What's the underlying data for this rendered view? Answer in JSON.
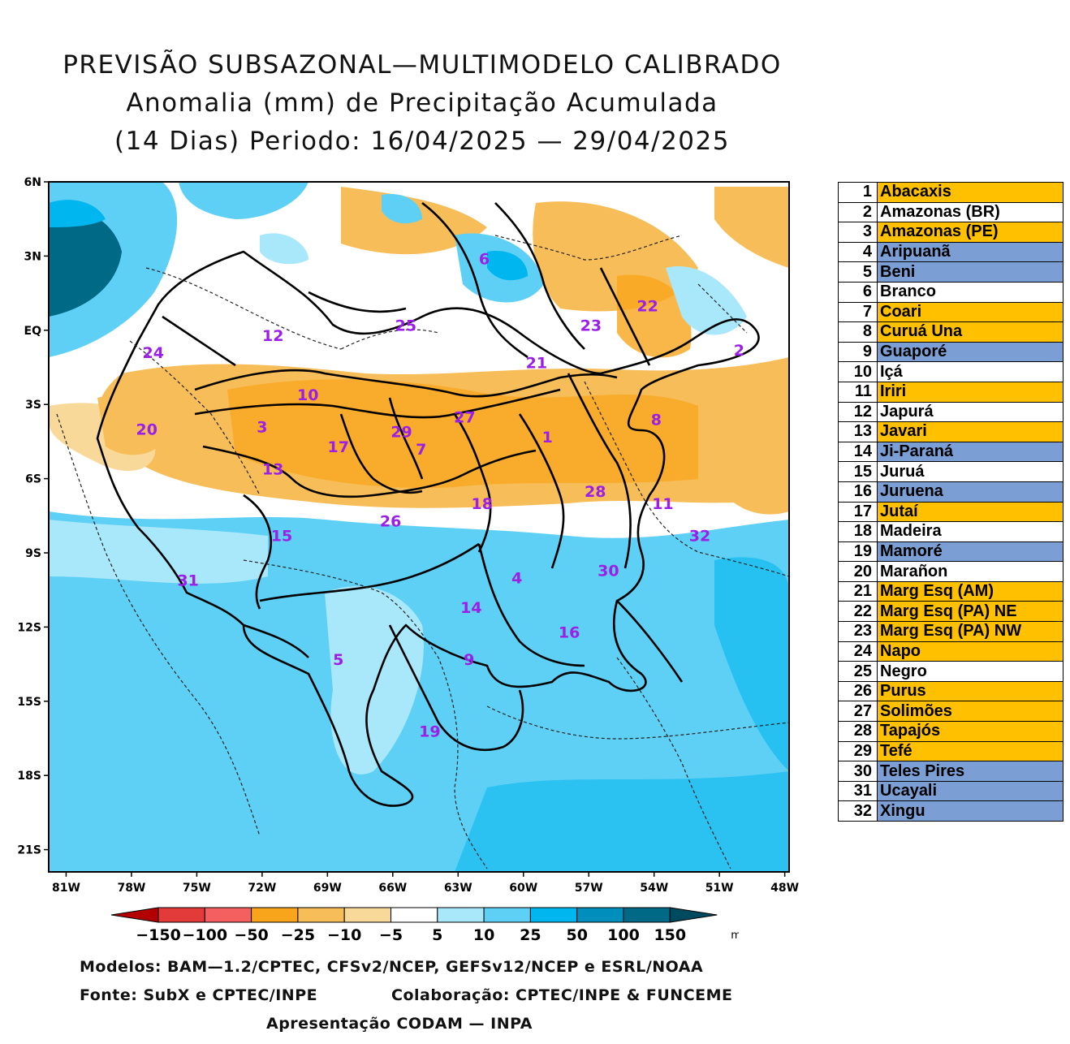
{
  "title": {
    "line1": "PREVISÃO SUBSAZONAL—MULTIMODELO CALIBRADO",
    "line2": "Anomalia (mm) de Precipitação Acumulada",
    "line3": "(14 Dias) Periodo: 16/04/2025 — 29/04/2025"
  },
  "map": {
    "lat_labels": [
      "6N",
      "3N",
      "EQ",
      "3S",
      "6S",
      "9S",
      "12S",
      "15S",
      "18S",
      "21S"
    ],
    "lon_labels": [
      "81W",
      "78W",
      "75W",
      "72W",
      "69W",
      "66W",
      "63W",
      "60W",
      "57W",
      "54W",
      "51W",
      "48W"
    ],
    "lat_values": [
      6,
      3,
      0,
      -3,
      -6,
      -9,
      -12,
      -15,
      -18,
      -21
    ],
    "lon_values": [
      -81,
      -78,
      -75,
      -72,
      -69,
      -66,
      -63,
      -60,
      -57,
      -54,
      -51,
      -48
    ],
    "basin_labels": [
      {
        "id": "1",
        "lon": -58.9,
        "lat": -4.3
      },
      {
        "id": "2",
        "lon": -50.1,
        "lat": -0.8
      },
      {
        "id": "3",
        "lon": -72.0,
        "lat": -3.9
      },
      {
        "id": "4",
        "lon": -60.3,
        "lat": -10.0
      },
      {
        "id": "5",
        "lon": -68.5,
        "lat": -13.3
      },
      {
        "id": "6",
        "lon": -61.8,
        "lat": 2.9
      },
      {
        "id": "7",
        "lon": -64.7,
        "lat": -4.8
      },
      {
        "id": "8",
        "lon": -53.9,
        "lat": -3.6
      },
      {
        "id": "9",
        "lon": -62.5,
        "lat": -13.3
      },
      {
        "id": "10",
        "lon": -69.9,
        "lat": -2.6
      },
      {
        "id": "11",
        "lon": -53.6,
        "lat": -7.0
      },
      {
        "id": "12",
        "lon": -71.5,
        "lat": -0.2
      },
      {
        "id": "13",
        "lon": -71.5,
        "lat": -5.6
      },
      {
        "id": "14",
        "lon": -62.4,
        "lat": -11.2
      },
      {
        "id": "15",
        "lon": -71.1,
        "lat": -8.3
      },
      {
        "id": "16",
        "lon": -57.9,
        "lat": -12.2
      },
      {
        "id": "17",
        "lon": -68.5,
        "lat": -4.7
      },
      {
        "id": "18",
        "lon": -61.9,
        "lat": -7.0
      },
      {
        "id": "19",
        "lon": -64.3,
        "lat": -16.2
      },
      {
        "id": "20",
        "lon": -77.3,
        "lat": -4.0
      },
      {
        "id": "21",
        "lon": -59.4,
        "lat": -1.3
      },
      {
        "id": "22",
        "lon": -54.3,
        "lat": 1.0
      },
      {
        "id": "23",
        "lon": -56.9,
        "lat": 0.2
      },
      {
        "id": "24",
        "lon": -77.0,
        "lat": -0.9
      },
      {
        "id": "25",
        "lon": -65.4,
        "lat": 0.2
      },
      {
        "id": "26",
        "lon": -66.1,
        "lat": -7.7
      },
      {
        "id": "27",
        "lon": -62.7,
        "lat": -3.5
      },
      {
        "id": "28",
        "lon": -56.7,
        "lat": -6.5
      },
      {
        "id": "29",
        "lon": -65.6,
        "lat": -4.1
      },
      {
        "id": "30",
        "lon": -56.1,
        "lat": -9.7
      },
      {
        "id": "31",
        "lon": -75.4,
        "lat": -10.1
      },
      {
        "id": "32",
        "lon": -51.9,
        "lat": -8.3
      }
    ]
  },
  "colorbar": {
    "labels": [
      "−150",
      "−100",
      "−50",
      "−25",
      "−10",
      "−5",
      "5",
      "10",
      "25",
      "50",
      "100",
      "150"
    ],
    "unit": "mm",
    "colors": [
      "#b30000",
      "#e33a3a",
      "#f46060",
      "#f9a51c",
      "#f7bd58",
      "#f9d999",
      "#ffffff",
      "#a9e7fb",
      "#5fd0f5",
      "#00b6ee",
      "#008fbd",
      "#006985",
      "#004a60"
    ]
  },
  "legend": [
    {
      "num": "1",
      "name": "Abacaxis",
      "color": "#ffc000"
    },
    {
      "num": "2",
      "name": "Amazonas (BR)",
      "color": "#ffffff"
    },
    {
      "num": "3",
      "name": "Amazonas (PE)",
      "color": "#ffc000"
    },
    {
      "num": "4",
      "name": "Aripuanã",
      "color": "#7b9fd4"
    },
    {
      "num": "5",
      "name": "Beni",
      "color": "#7b9fd4"
    },
    {
      "num": "6",
      "name": "Branco",
      "color": "#ffffff"
    },
    {
      "num": "7",
      "name": "Coari",
      "color": "#ffc000"
    },
    {
      "num": "8",
      "name": "Curuá Una",
      "color": "#ffc000"
    },
    {
      "num": "9",
      "name": "Guaporé",
      "color": "#7b9fd4"
    },
    {
      "num": "10",
      "name": "Içá",
      "color": "#ffffff"
    },
    {
      "num": "11",
      "name": "Iriri",
      "color": "#ffc000"
    },
    {
      "num": "12",
      "name": "Japurá",
      "color": "#ffffff"
    },
    {
      "num": "13",
      "name": "Javari",
      "color": "#ffc000"
    },
    {
      "num": "14",
      "name": "Ji-Paraná",
      "color": "#7b9fd4"
    },
    {
      "num": "15",
      "name": "Juruá",
      "color": "#ffffff"
    },
    {
      "num": "16",
      "name": "Juruena",
      "color": "#7b9fd4"
    },
    {
      "num": "17",
      "name": "Jutaí",
      "color": "#ffc000"
    },
    {
      "num": "18",
      "name": "Madeira",
      "color": "#ffffff"
    },
    {
      "num": "19",
      "name": "Mamoré",
      "color": "#7b9fd4"
    },
    {
      "num": "20",
      "name": "Marañon",
      "color": "#ffffff"
    },
    {
      "num": "21",
      "name": "Marg Esq (AM)",
      "color": "#ffc000"
    },
    {
      "num": "22",
      "name": "Marg Esq (PA) NE",
      "color": "#ffc000"
    },
    {
      "num": "23",
      "name": "Marg Esq (PA) NW",
      "color": "#ffc000"
    },
    {
      "num": "24",
      "name": "Napo",
      "color": "#ffc000"
    },
    {
      "num": "25",
      "name": "Negro",
      "color": "#ffffff"
    },
    {
      "num": "26",
      "name": "Purus",
      "color": "#ffc000"
    },
    {
      "num": "27",
      "name": "Solimões",
      "color": "#ffc000"
    },
    {
      "num": "28",
      "name": "Tapajós",
      "color": "#ffc000"
    },
    {
      "num": "29",
      "name": "Tefé",
      "color": "#ffc000"
    },
    {
      "num": "30",
      "name": "Teles Pires",
      "color": "#7b9fd4"
    },
    {
      "num": "31",
      "name": "Ucayali",
      "color": "#7b9fd4"
    },
    {
      "num": "32",
      "name": "Xingu",
      "color": "#7b9fd4"
    }
  ],
  "credits": {
    "models": "Modelos: BAM—1.2/CPTEC, CFSv2/NCEP, GEFSv12/NCEP e ESRL/NOAA",
    "source": "Fonte: SubX e CPTEC/INPE",
    "collab": "Colaboração: CPTEC/INPE & FUNCEME",
    "presentation": "Apresentação CODAM — INPA"
  }
}
